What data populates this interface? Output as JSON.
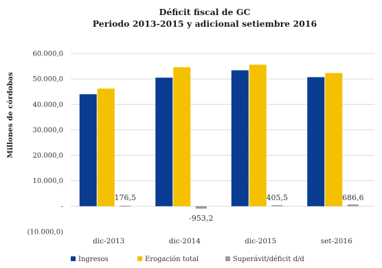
{
  "chart_data": {
    "type": "bar",
    "title": "Déficit fiscal de GC",
    "subtitle": "Periodo 2013-2015 y adicional setiembre 2016",
    "ylabel": "Millones de córdobas",
    "ylim": [
      -10000,
      60000
    ],
    "yticks": [
      -10000,
      0,
      10000,
      20000,
      30000,
      40000,
      50000,
      60000
    ],
    "ytick_labels": [
      "(10.000,0)",
      "-",
      "10.000,0",
      "20.000,0",
      "30.000,0",
      "40.000,0",
      "50.000,0",
      "60.000,0"
    ],
    "categories": [
      "dic-2013",
      "dic-2014",
      "dic-2015",
      "set-2016"
    ],
    "series": [
      {
        "name": "Ingresos",
        "color": "#0a3d91",
        "values": [
          44000,
          50500,
          53400,
          50700
        ]
      },
      {
        "name": "Erogación total",
        "color": "#f5c000",
        "values": [
          46200,
          54600,
          55600,
          52300
        ]
      },
      {
        "name": "Superávit/déficit d/d",
        "color": "#9a9a9a",
        "values": [
          176.5,
          -953.2,
          405.5,
          686.6
        ],
        "labels": [
          "176,5",
          "-953,2",
          "405,5",
          "686,6"
        ]
      }
    ],
    "legend_position": "bottom",
    "grid": true
  }
}
